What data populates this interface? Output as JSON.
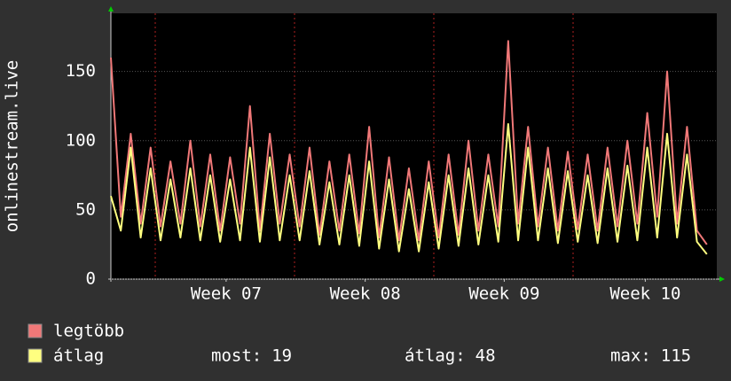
{
  "chart_data": {
    "type": "line",
    "y_label": "onlinestream.live",
    "x": [
      0,
      0.5,
      1,
      1.5,
      2,
      2.5,
      3,
      3.5,
      4,
      4.5,
      5,
      5.5,
      6,
      6.5,
      7,
      7.5,
      8,
      8.5,
      9,
      9.5,
      10,
      10.5,
      11,
      11.5,
      12,
      12.5,
      13,
      13.5,
      14,
      14.5,
      15,
      15.5,
      16,
      16.5,
      17,
      17.5,
      18,
      18.5,
      19,
      19.5,
      20,
      20.5,
      21,
      21.5,
      22,
      22.5,
      23,
      23.5,
      24,
      24.5,
      25,
      25.5,
      26,
      26.5,
      27,
      27.5,
      28,
      28.5,
      29,
      29.5,
      30
    ],
    "xlim": [
      0,
      30.5
    ],
    "xticks": [
      {
        "value": 5.8,
        "label": "Week 07"
      },
      {
        "value": 12.8,
        "label": "Week 08"
      },
      {
        "value": 19.8,
        "label": "Week 09"
      },
      {
        "value": 26.9,
        "label": "Week 10"
      }
    ],
    "ylim": [
      0,
      192
    ],
    "yticks": [
      0,
      50,
      100,
      150
    ],
    "grid": true,
    "series": [
      {
        "name": "legtöbb",
        "color": "#f07878",
        "values": [
          160,
          45,
          105,
          40,
          95,
          38,
          85,
          40,
          100,
          38,
          90,
          35,
          88,
          40,
          125,
          35,
          105,
          40,
          90,
          38,
          95,
          32,
          85,
          35,
          90,
          33,
          110,
          30,
          88,
          28,
          80,
          28,
          85,
          30,
          90,
          32,
          100,
          35,
          90,
          38,
          172,
          40,
          110,
          38,
          95,
          35,
          92,
          36,
          90,
          35,
          95,
          38,
          100,
          40,
          120,
          45,
          150,
          40,
          110,
          35,
          25
        ]
      },
      {
        "name": "átlag",
        "color": "#ffff80",
        "values": [
          60,
          35,
          95,
          30,
          80,
          28,
          72,
          30,
          80,
          28,
          75,
          27,
          72,
          28,
          95,
          27,
          88,
          28,
          75,
          28,
          78,
          25,
          70,
          25,
          75,
          24,
          85,
          22,
          72,
          20,
          65,
          20,
          70,
          22,
          75,
          24,
          80,
          25,
          75,
          27,
          112,
          28,
          95,
          28,
          80,
          26,
          78,
          27,
          75,
          26,
          80,
          27,
          82,
          28,
          95,
          30,
          105,
          30,
          90,
          27,
          18
        ]
      }
    ],
    "stats": [
      {
        "label": "most:",
        "value": 19
      },
      {
        "label": "átlag:",
        "value": 48
      },
      {
        "label": "max:",
        "value": 115
      }
    ]
  }
}
